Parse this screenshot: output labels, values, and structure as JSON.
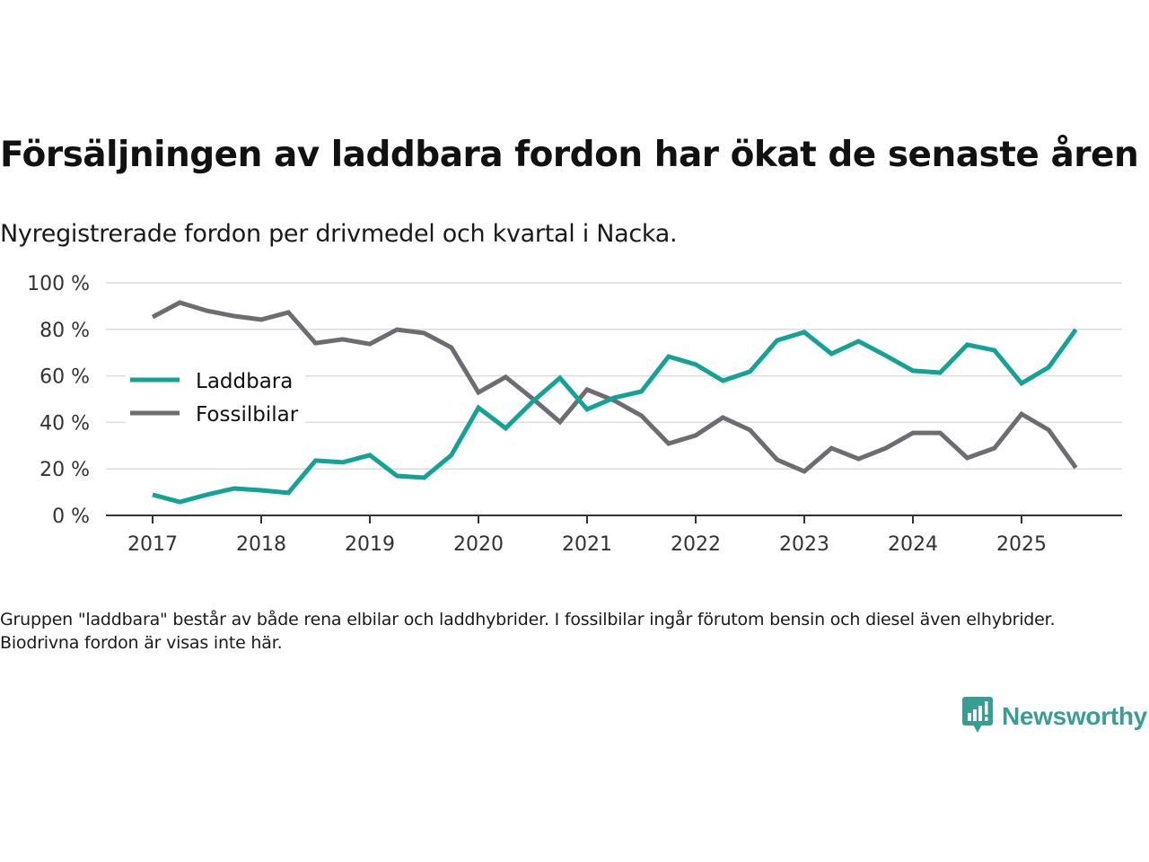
{
  "title": "Försäljningen av laddbara fordon har ökat de senaste åren",
  "subtitle": "Nyregistrerade fordon per drivmedel och kvartal i Nacka.",
  "footnote": "Gruppen \"laddbara\" består av både rena elbilar och laddhybrider. I fossilbilar ingår förutom bensin och diesel även elhybrider. Biodrivna fordon är visas inte här.",
  "brand": {
    "name": "Newsworthy",
    "icon": "newsworthy-logo-icon",
    "color": "#3a9d94"
  },
  "chart_data": {
    "type": "line",
    "title": "Försäljningen av laddbara fordon har ökat de senaste åren",
    "subtitle": "Nyregistrerade fordon per drivmedel och kvartal i Nacka.",
    "xlabel": "",
    "ylabel": "",
    "x_start": 2017.0,
    "x_step": 0.25,
    "x": [
      "2017 Q1",
      "2017 Q2",
      "2017 Q3",
      "2017 Q4",
      "2018 Q1",
      "2018 Q2",
      "2018 Q3",
      "2018 Q4",
      "2019 Q1",
      "2019 Q2",
      "2019 Q3",
      "2019 Q4",
      "2020 Q1",
      "2020 Q2",
      "2020 Q3",
      "2020 Q4",
      "2021 Q1",
      "2021 Q2",
      "2021 Q3",
      "2021 Q4",
      "2022 Q1",
      "2022 Q2",
      "2022 Q3",
      "2022 Q4",
      "2023 Q1",
      "2023 Q2",
      "2023 Q3",
      "2023 Q4",
      "2024 Q1",
      "2024 Q2",
      "2024 Q3",
      "2024 Q4",
      "2025 Q1",
      "2025 Q2",
      "2025 Q3"
    ],
    "xticks": [
      2017,
      2018,
      2019,
      2020,
      2021,
      2022,
      2023,
      2024,
      2025
    ],
    "xlim": [
      2016.6,
      2025.9
    ],
    "ylim": [
      0,
      100
    ],
    "yticks": [
      0,
      20,
      40,
      60,
      80,
      100
    ],
    "ytick_suffix": " %",
    "grid": true,
    "legend_position": "left-middle",
    "series": [
      {
        "name": "Laddbara",
        "color": "#12a296",
        "values": [
          8.9,
          5.8,
          8.9,
          11.6,
          10.8,
          9.7,
          23.6,
          22.8,
          25.9,
          17.0,
          16.2,
          25.9,
          46.3,
          37.5,
          49.0,
          59.1,
          45.6,
          50.6,
          53.3,
          68.3,
          64.9,
          57.9,
          61.8,
          75.3,
          78.8,
          69.5,
          74.9,
          68.7,
          62.2,
          61.4,
          73.4,
          71.0,
          56.8,
          63.7,
          79.9
        ]
      },
      {
        "name": "Fossilbilar",
        "color": "#6d6c72",
        "values": [
          85.3,
          91.5,
          88.0,
          85.7,
          84.2,
          87.3,
          74.1,
          75.7,
          73.7,
          79.9,
          78.4,
          72.2,
          52.9,
          59.5,
          50.2,
          40.2,
          54.1,
          49.4,
          42.9,
          30.9,
          34.4,
          42.1,
          36.7,
          23.9,
          18.9,
          28.9,
          24.3,
          28.9,
          35.5,
          35.5,
          24.7,
          28.9,
          43.6,
          36.7,
          20.5
        ]
      }
    ]
  }
}
